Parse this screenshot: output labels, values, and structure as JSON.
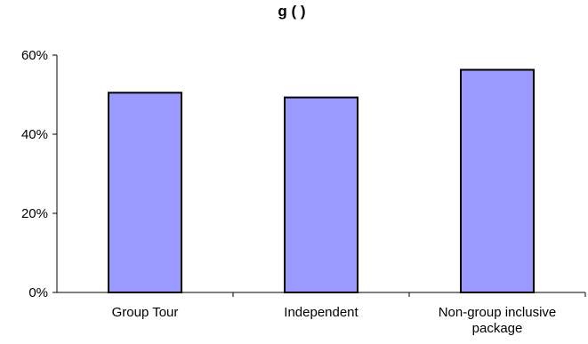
{
  "chart_data": {
    "type": "bar",
    "title": "g  (  )",
    "categories": [
      "Group Tour",
      "Independent",
      "Non-group inclusive package"
    ],
    "category_label_lines": [
      [
        "Group Tour"
      ],
      [
        "Independent"
      ],
      [
        "Non-group inclusive",
        "package"
      ]
    ],
    "values": [
      50.5,
      49.3,
      56.3
    ],
    "ylim": [
      0,
      60
    ],
    "yticks": [
      0,
      20,
      40,
      60
    ],
    "ytick_labels": [
      "0%",
      "20%",
      "40%",
      "60%"
    ],
    "grid": false,
    "legend": "none",
    "bar_color": "#9999ff",
    "bar_edge_color": "#000000"
  }
}
